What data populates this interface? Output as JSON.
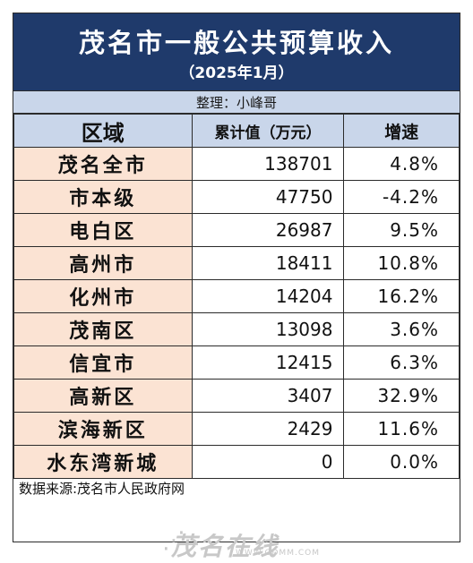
{
  "header": {
    "title": "茂名市一般公共预算收入",
    "subtitle": "（2025年1月）",
    "compiler": "整理：小峰哥"
  },
  "table": {
    "columns": [
      "区域",
      "累计值（万元）",
      "增速"
    ],
    "rows": [
      {
        "region": "茂名全市",
        "value": "138701",
        "growth": "4.8%"
      },
      {
        "region": "市本级",
        "value": "47750",
        "growth": "-4.2%"
      },
      {
        "region": "电白区",
        "value": "26987",
        "growth": "9.5%"
      },
      {
        "region": "高州市",
        "value": "18411",
        "growth": "10.8%"
      },
      {
        "region": "化州市",
        "value": "14204",
        "growth": "16.2%"
      },
      {
        "region": "茂南区",
        "value": "13098",
        "growth": "3.6%"
      },
      {
        "region": "信宜市",
        "value": "12415",
        "growth": "6.3%"
      },
      {
        "region": "高新区",
        "value": "3407",
        "growth": "32.9%"
      },
      {
        "region": "滨海新区",
        "value": "2429",
        "growth": "11.6%"
      },
      {
        "region": "水东湾新城",
        "value": "0",
        "growth": "0.0%"
      }
    ]
  },
  "footer": {
    "source": "数据来源:茂名市人民政府网"
  },
  "watermark": {
    "logo_text": "茂名在线",
    "url": "WWW.GDMM.COM"
  },
  "colors": {
    "header_bg": "#1f3a6b",
    "column_header_bg": "#c9d6ea",
    "region_cell_bg": "#fbe3d3"
  }
}
